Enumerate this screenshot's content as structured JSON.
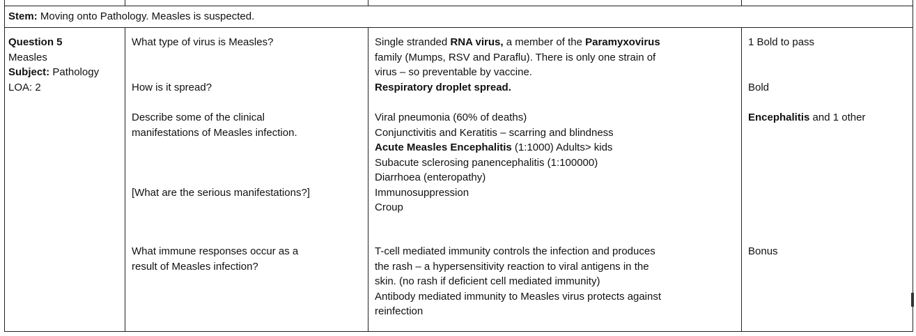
{
  "stem": {
    "label": "Stem:",
    "text": " Moving onto Pathology. Measles is suspected."
  },
  "question": {
    "title": "Question 5",
    "topic": "Measles",
    "subject_label": "Subject:",
    "subject_value": " Pathology",
    "loa": "LOA: 2"
  },
  "questions": {
    "q1": "What type of virus is Measles?",
    "q2": "How is it spread?",
    "q3_line1": "Describe some of the clinical",
    "q3_line2": "manifestations of Measles infection.",
    "q4": "[What are the serious manifestations?]",
    "q5_line1": "What immune responses occur as a",
    "q5_line2": "result of Measles infection?"
  },
  "answers": {
    "a1_pre": "Single stranded ",
    "a1_bold1": "RNA virus,",
    "a1_mid": " a member of the ",
    "a1_bold2": "Paramyxovirus",
    "a1_line2": "family (Mumps, RSV and Paraflu). There is only one strain of",
    "a1_line3": "virus – so preventable by vaccine.",
    "a2": "Respiratory droplet spread.",
    "a3_line1": "Viral pneumonia (60% of deaths)",
    "a3_line2": "Conjunctivitis and Keratitis – scarring and blindness",
    "a3_line3_bold": "Acute Measles Encephalitis",
    "a3_line3_rest": " (1:1000)  Adults> kids",
    "a3_line4": "Subacute sclerosing panencephalitis  (1:100000)",
    "a3_line5": "Diarrhoea (enteropathy)",
    "a3_line6": "Immunosuppression",
    "a3_line7": "Croup",
    "a4_line1": "T-cell mediated immunity controls the infection and produces",
    "a4_line2": "the rash – a hypersensitivity reaction to viral antigens in the",
    "a4_line3": "skin. (no rash if deficient cell mediated immunity)",
    "a4_line4": "Antibody mediated immunity to Measles virus protects against",
    "a4_line5": "reinfection"
  },
  "marking": {
    "m1": "1 Bold to pass",
    "m2": "Bold",
    "m3_bold": "Encephalitis",
    "m3_rest": " and 1 other",
    "m4": "Bonus"
  }
}
